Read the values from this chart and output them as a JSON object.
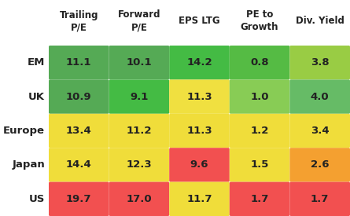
{
  "rows": [
    "EM",
    "UK",
    "Europe",
    "Japan",
    "US"
  ],
  "cols": [
    "Trailing\nP/E",
    "Forward\nP/E",
    "EPS LTG",
    "PE to\nGrowth",
    "Div. Yield"
  ],
  "values": [
    [
      11.1,
      10.1,
      14.2,
      0.8,
      3.8
    ],
    [
      10.9,
      9.1,
      11.3,
      1.0,
      4.0
    ],
    [
      13.4,
      11.2,
      11.3,
      1.2,
      3.4
    ],
    [
      14.4,
      12.3,
      9.6,
      1.5,
      2.6
    ],
    [
      19.7,
      17.0,
      11.7,
      1.7,
      1.7
    ]
  ],
  "cell_colors": [
    [
      "#55aa55",
      "#55aa55",
      "#44bb44",
      "#55bb44",
      "#99cc44"
    ],
    [
      "#55aa55",
      "#44bb44",
      "#f0e040",
      "#88cc55",
      "#66bb66"
    ],
    [
      "#f0dd3a",
      "#f0dd3a",
      "#f0dd3a",
      "#f0dd3a",
      "#f0dd3a"
    ],
    [
      "#f0dd3a",
      "#f0dd3a",
      "#f25050",
      "#f0dd3a",
      "#f4a030"
    ],
    [
      "#f25050",
      "#f25050",
      "#f0dd3a",
      "#f25050",
      "#f25050"
    ]
  ],
  "bg_color": "#ffffff",
  "label_color": "#222222",
  "header_color": "#222222",
  "cell_text_color": "#222222"
}
